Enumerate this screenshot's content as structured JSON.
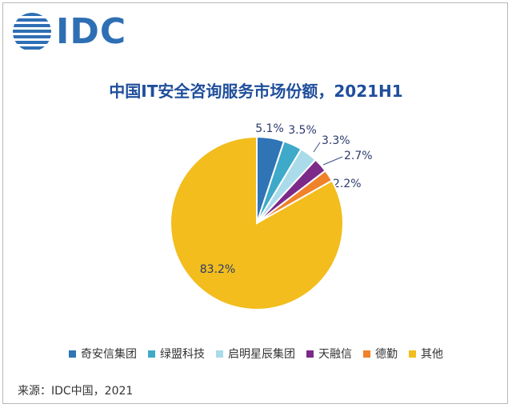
{
  "logo": {
    "text": "IDC",
    "color": "#2e6fb4"
  },
  "source": "来源：IDC中国，2021",
  "chart_data": {
    "type": "pie",
    "title": "中国IT安全咨询服务市场份额，2021H1",
    "legend_position": "bottom",
    "slices": [
      {
        "name": "奇安信集团",
        "value": 5.1,
        "label": "5.1%",
        "color": "#2f74b5"
      },
      {
        "name": "绿盟科技",
        "value": 3.5,
        "label": "3.5%",
        "color": "#3fa9c9"
      },
      {
        "name": "启明星辰集团",
        "value": 3.3,
        "label": "3.3%",
        "color": "#a9dbea"
      },
      {
        "name": "天融信",
        "value": 2.7,
        "label": "2.7%",
        "color": "#7b2a8a"
      },
      {
        "name": "德勤",
        "value": 2.2,
        "label": "2.2%",
        "color": "#f0822a"
      },
      {
        "name": "其他",
        "value": 83.2,
        "label": "83.2%",
        "color": "#f2bd1d"
      }
    ]
  }
}
